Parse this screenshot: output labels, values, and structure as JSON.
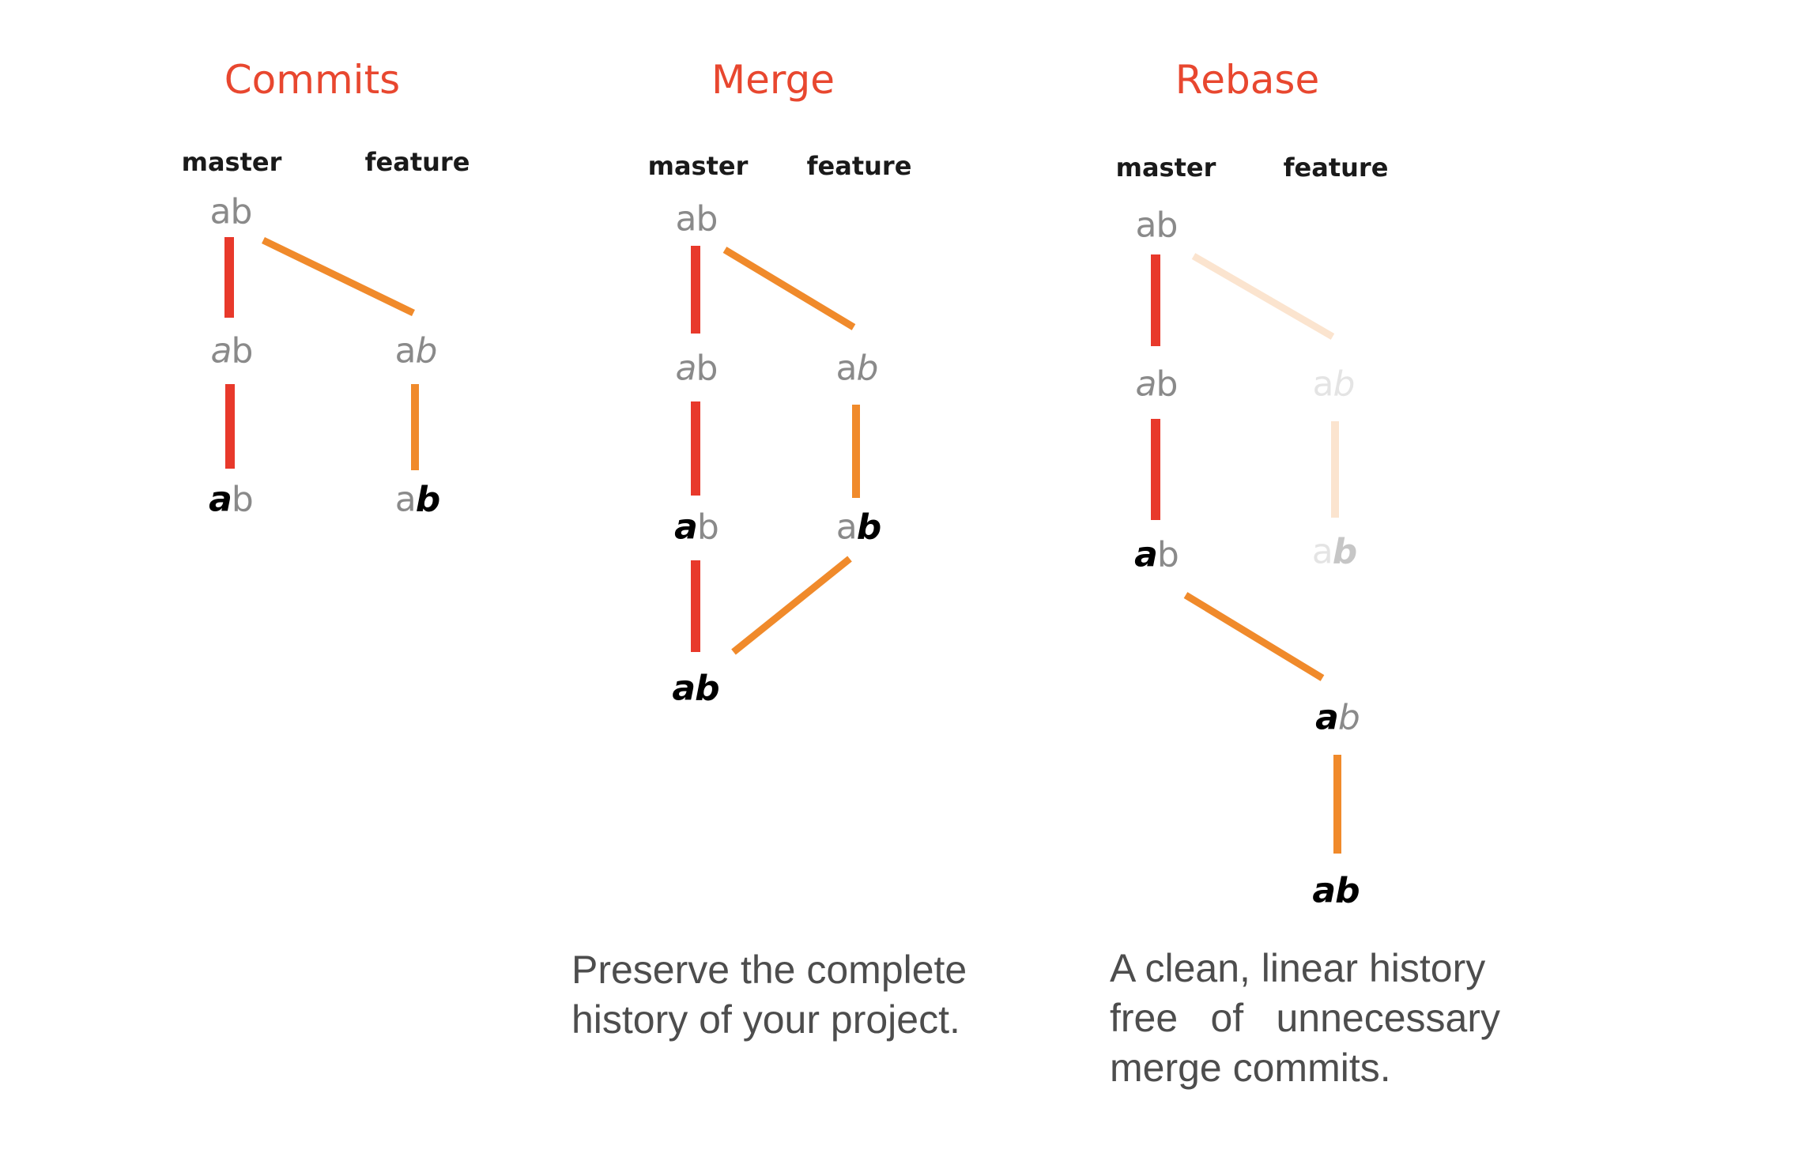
{
  "colors": {
    "title": "#e8472f",
    "master_edge": "#e8392b",
    "feature_edge": "#f08a2b",
    "caption": "#4d4d4d"
  },
  "panels": {
    "commits": {
      "title": "Commits",
      "master_label": "master",
      "feature_label": "feature"
    },
    "merge": {
      "title": "Merge",
      "master_label": "master",
      "feature_label": "feature",
      "caption": [
        "Preserve the complete",
        "history of your project."
      ]
    },
    "rebase": {
      "title": "Rebase",
      "master_label": "master",
      "feature_label": "feature",
      "caption": [
        "A clean, linear history",
        "free of unnecessary",
        "merge commits."
      ]
    }
  },
  "commit_text": {
    "a": "a",
    "b": "b"
  }
}
